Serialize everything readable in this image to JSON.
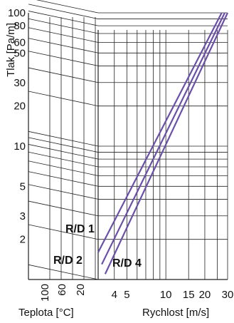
{
  "chart_data": {
    "type": "line",
    "ylabel": "Tlak [Pa/m]",
    "xlabel": "Rychlost [m/s]",
    "temp_label": "Teplota [°C]",
    "y_scale": "log",
    "x_scale": "log",
    "ylim": [
      1,
      100
    ],
    "xlim": [
      3,
      30
    ],
    "y_ticks": [
      100,
      80,
      60,
      50,
      30,
      20,
      10,
      5,
      3,
      2
    ],
    "x_ticks": [
      4,
      5,
      10,
      15,
      20,
      30
    ],
    "temp_ticks": [
      100,
      60,
      20
    ],
    "grid": true,
    "line_color": "#6b4fa8",
    "series": [
      {
        "name": "R/D 1",
        "x": [
          3,
          27
        ],
        "y": [
          1.6,
          100
        ]
      },
      {
        "name": "R/D 2",
        "x": [
          3.2,
          28.5
        ],
        "y": [
          1.3,
          100
        ]
      },
      {
        "name": "R/D 4",
        "x": [
          3.4,
          30
        ],
        "y": [
          1.1,
          100
        ]
      }
    ]
  }
}
